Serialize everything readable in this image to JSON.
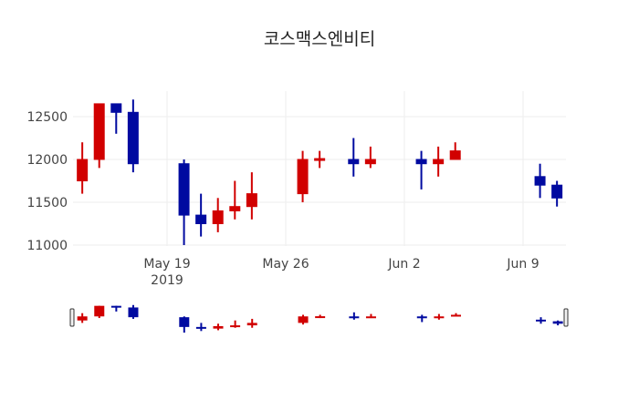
{
  "title": "코스맥스엔비티",
  "colors": {
    "increasing": "#d10000",
    "decreasing": "#000aa0",
    "grid": "#eeeeee",
    "text": "#444444"
  },
  "chart_data": {
    "type": "candlestick",
    "title": "코스맥스엔비티",
    "xlabel": "",
    "ylabel": "",
    "ylim": [
      10950,
      12800
    ],
    "yticks": [
      11000,
      11500,
      12000,
      12500
    ],
    "xticks": [
      {
        "date": "2019-05-19",
        "label": "May 19",
        "sublabel": "2019"
      },
      {
        "date": "2019-05-26",
        "label": "May 26",
        "sublabel": ""
      },
      {
        "date": "2019-06-02",
        "label": "Jun 2",
        "sublabel": ""
      },
      {
        "date": "2019-06-09",
        "label": "Jun 9",
        "sublabel": ""
      }
    ],
    "xrange": [
      "2019-05-13.6",
      "2019-06-11.6"
    ],
    "grid": true,
    "rangeslider": true,
    "candles": [
      {
        "date": "2019-05-14",
        "open": 11750,
        "high": 12200,
        "low": 11600,
        "close": 12000
      },
      {
        "date": "2019-05-15",
        "open": 12000,
        "high": 12650,
        "low": 11900,
        "close": 12650
      },
      {
        "date": "2019-05-16",
        "open": 12650,
        "high": 12650,
        "low": 12300,
        "close": 12550
      },
      {
        "date": "2019-05-17",
        "open": 12550,
        "high": 12700,
        "low": 11850,
        "close": 11950
      },
      {
        "date": "2019-05-20",
        "open": 11950,
        "high": 12000,
        "low": 11000,
        "close": 11350
      },
      {
        "date": "2019-05-21",
        "open": 11350,
        "high": 11600,
        "low": 11100,
        "close": 11250
      },
      {
        "date": "2019-05-22",
        "open": 11250,
        "high": 11550,
        "low": 11150,
        "close": 11400
      },
      {
        "date": "2019-05-23",
        "open": 11400,
        "high": 11750,
        "low": 11300,
        "close": 11450
      },
      {
        "date": "2019-05-24",
        "open": 11450,
        "high": 11850,
        "low": 11300,
        "close": 11600
      },
      {
        "date": "2019-05-27",
        "open": 11600,
        "high": 12100,
        "low": 11500,
        "close": 12000
      },
      {
        "date": "2019-05-28",
        "open": 11990,
        "high": 12100,
        "low": 11900,
        "close": 12010
      },
      {
        "date": "2019-05-30",
        "open": 12000,
        "high": 12250,
        "low": 11800,
        "close": 11950
      },
      {
        "date": "2019-05-31",
        "open": 11950,
        "high": 12150,
        "low": 11900,
        "close": 12000
      },
      {
        "date": "2019-06-03",
        "open": 12000,
        "high": 12100,
        "low": 11650,
        "close": 11950
      },
      {
        "date": "2019-06-04",
        "open": 11950,
        "high": 12150,
        "low": 11800,
        "close": 12000
      },
      {
        "date": "2019-06-05",
        "open": 12000,
        "high": 12200,
        "low": 12000,
        "close": 12100
      },
      {
        "date": "2019-06-10",
        "open": 11800,
        "high": 11950,
        "low": 11550,
        "close": 11700
      },
      {
        "date": "2019-06-11",
        "open": 11700,
        "high": 11750,
        "low": 11450,
        "close": 11550
      }
    ]
  }
}
